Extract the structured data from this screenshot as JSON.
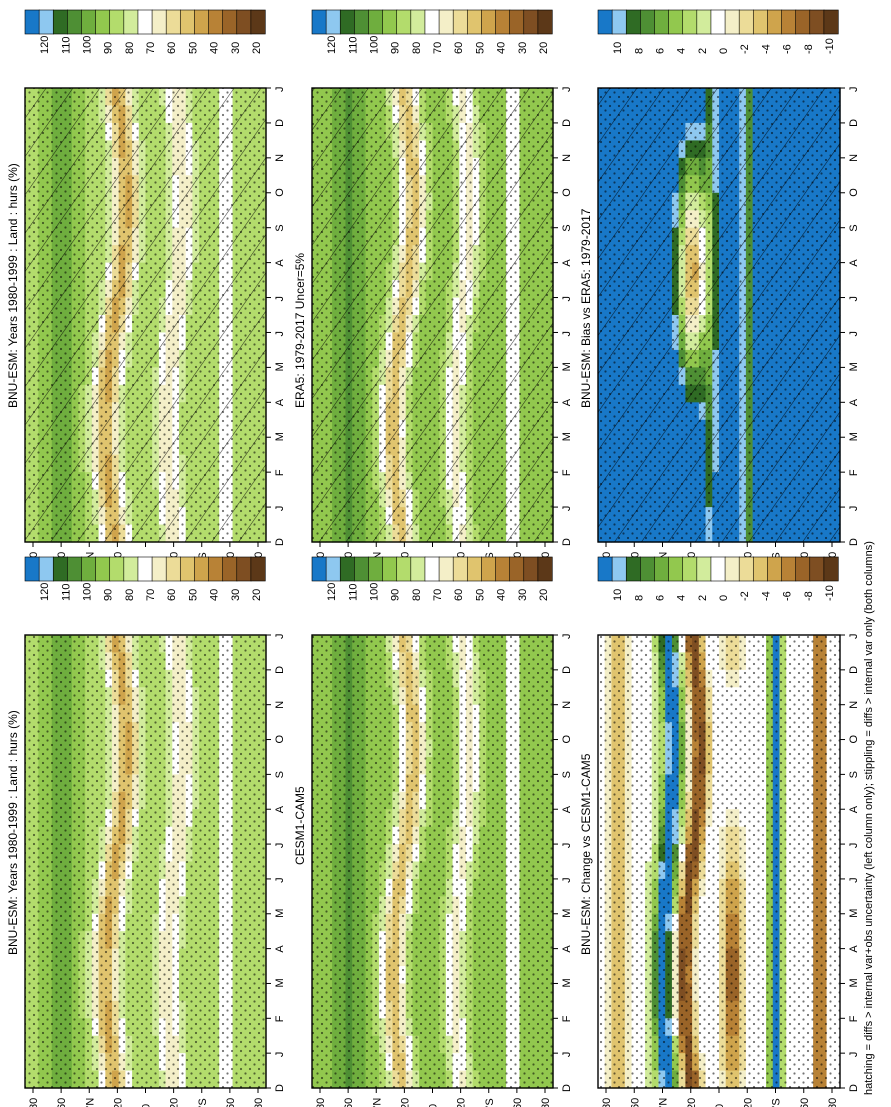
{
  "footer_note": "hatching = diffs > internal var+obs uncertainty (left column only); stippling = diffs > internal var only (both columns)",
  "colors": {
    "abs_scale": [
      "#1878c8",
      "#8ec8f0",
      "#2f6b24",
      "#4e8f34",
      "#6fae3e",
      "#92c84e",
      "#b3dc6c",
      "#d2ec9c",
      "#ffffff",
      "#f4efc8",
      "#ecdc98",
      "#e0c46e",
      "#cfa44c",
      "#b88236",
      "#9a6428",
      "#7e4e22",
      "#5c3818"
    ],
    "diff_scale": [
      "#1878c8",
      "#8ec8f0",
      "#2f6b24",
      "#4e8f34",
      "#6fae3e",
      "#92c84e",
      "#b3dc6c",
      "#d2ec9c",
      "#ffffff",
      "#f4efc8",
      "#ecdc98",
      "#e0c46e",
      "#cfa44c",
      "#b88236",
      "#9a6428",
      "#7e4e22",
      "#5c3818"
    ]
  },
  "panels": [
    {
      "id": "a",
      "title": "BNU-ESM: Years 1980-1999 : Land : hurs (%)",
      "kind": "abs",
      "hatch": true,
      "stipple": true
    },
    {
      "id": "b",
      "title": "BNU-ESM: Years 1980-1999 : Land : hurs (%)",
      "kind": "abs",
      "hatch": false,
      "stipple": true
    },
    {
      "id": "c",
      "title": "ERA5: 1979-2017 Uncer=5%",
      "kind": "abs",
      "hatch": true,
      "stipple": true
    },
    {
      "id": "d",
      "title": "CESM1-CAM5",
      "kind": "abs",
      "hatch": false,
      "stipple": true
    },
    {
      "id": "e",
      "title": "BNU-ESM: Bias vs ERA5: 1979-2017",
      "kind": "diff",
      "hatch": true,
      "stipple": true
    },
    {
      "id": "f",
      "title": "BNU-ESM: Change vs CESM1-CAM5",
      "kind": "diff",
      "hatch": false,
      "stipple": true
    }
  ],
  "colorbars": {
    "abs_labels": [
      "120",
      "110",
      "100",
      "90",
      "80",
      "70",
      "60",
      "50",
      "40",
      "30",
      "20"
    ],
    "diff_labels": [
      "10",
      "8",
      "6",
      "4",
      "2",
      "0",
      "-2",
      "-4",
      "-6",
      "-8",
      "-10"
    ]
  },
  "axes": {
    "month_labels": [
      "D",
      "J",
      "F",
      "M",
      "A",
      "M",
      "J",
      "J",
      "A",
      "S",
      "O",
      "N",
      "D",
      "J"
    ],
    "lat_labels": [
      "80",
      "60",
      "°N",
      "20",
      "0",
      "20",
      "°S",
      "60",
      "80"
    ]
  },
  "chart_data": {
    "type": "heatmap",
    "x": [
      "D",
      "J",
      "F",
      "M",
      "A",
      "M",
      "J",
      "J",
      "A",
      "S",
      "O",
      "N",
      "D",
      "J"
    ],
    "y": [
      "80",
      "60",
      "°N",
      "20",
      "0",
      "20",
      "°S",
      "60",
      "80"
    ],
    "abs_scale_values": [
      120,
      110,
      100,
      90,
      80,
      70,
      60,
      50,
      40,
      30,
      20
    ],
    "diff_scale_values": [
      10,
      8,
      6,
      4,
      2,
      0,
      -2,
      -4,
      -6,
      -8,
      -10
    ],
    "note": "Zonal-mean land relative humidity seasonal cycle by latitude (6 panels)."
  }
}
